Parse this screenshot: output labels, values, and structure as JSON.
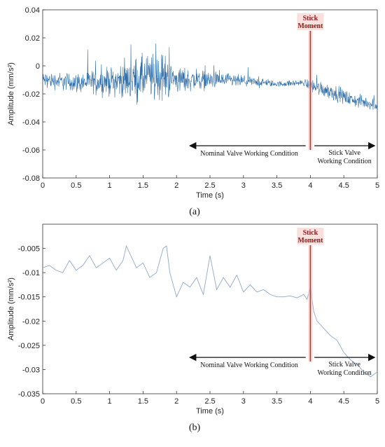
{
  "chart_data": [
    {
      "type": "line",
      "panel_label": "(a)",
      "xlabel": "Time (s)",
      "ylabel": "Amplitude (mm/s²)",
      "xlim": [
        0,
        5
      ],
      "ylim": [
        -0.08,
        0.04
      ],
      "xticks": [
        "0",
        "0.5",
        "1",
        "1.5",
        "2",
        "2.5",
        "3",
        "3.5",
        "4",
        "4.5",
        "5"
      ],
      "yticks": [
        "0.04",
        "0.02",
        "0",
        "-0.02",
        "-0.04",
        "-0.06",
        "-0.08"
      ],
      "line_color": "#2f6ea8",
      "grid": false,
      "signal_envelope": {
        "x": [
          0,
          0.5,
          1.0,
          1.3,
          1.6,
          1.8,
          2.0,
          2.5,
          3.0,
          3.3,
          3.5,
          3.9,
          4.0,
          4.3,
          4.6,
          5.0
        ],
        "center": [
          -0.01,
          -0.012,
          -0.011,
          -0.01,
          -0.008,
          -0.008,
          -0.01,
          -0.01,
          -0.011,
          -0.012,
          -0.013,
          -0.012,
          -0.014,
          -0.018,
          -0.024,
          -0.028
        ],
        "amplitude": [
          0.008,
          0.01,
          0.014,
          0.02,
          0.025,
          0.024,
          0.014,
          0.009,
          0.006,
          0.004,
          0.003,
          0.003,
          0.008,
          0.008,
          0.007,
          0.006
        ]
      },
      "stick_moment": {
        "x": 4.0,
        "label_line1": "Stick",
        "label_line2": "Moment",
        "color": "#c0392b"
      },
      "annotations": {
        "nominal": "Nominal Valve Working Condition",
        "stick_line1": "Stick Valve",
        "stick_line2": "Working Condition",
        "arrow_y": -0.057
      }
    },
    {
      "type": "line",
      "panel_label": "(b)",
      "xlabel": "Time (s)",
      "ylabel": "Amplitude (mm/s²)",
      "xlim": [
        0,
        5
      ],
      "ylim": [
        -0.035,
        0
      ],
      "xticks": [
        "0",
        "0.5",
        "1",
        "1.5",
        "2",
        "2.5",
        "3",
        "3.5",
        "4",
        "4.5",
        "5"
      ],
      "yticks": [
        "-0.005",
        "-0.01",
        "-0.015",
        "-0.02",
        "-0.025",
        "-0.03",
        "-0.035"
      ],
      "line_color": "#8fa8c8",
      "grid": false,
      "x": [
        0,
        0.1,
        0.2,
        0.3,
        0.4,
        0.5,
        0.6,
        0.7,
        0.8,
        0.9,
        1.0,
        1.1,
        1.2,
        1.25,
        1.3,
        1.4,
        1.5,
        1.6,
        1.7,
        1.8,
        1.85,
        1.9,
        2.0,
        2.1,
        2.2,
        2.3,
        2.4,
        2.5,
        2.6,
        2.7,
        2.8,
        2.9,
        3.0,
        3.1,
        3.2,
        3.3,
        3.4,
        3.5,
        3.6,
        3.7,
        3.8,
        3.9,
        3.95,
        4.0,
        4.05,
        4.1,
        4.2,
        4.3,
        4.4,
        4.5,
        4.6,
        4.7,
        4.8,
        4.9,
        5.0
      ],
      "y": [
        -0.009,
        -0.0085,
        -0.0095,
        -0.01,
        -0.0075,
        -0.0095,
        -0.0085,
        -0.0065,
        -0.009,
        -0.008,
        -0.007,
        -0.0095,
        -0.0075,
        -0.0045,
        -0.006,
        -0.009,
        -0.008,
        -0.011,
        -0.01,
        -0.005,
        -0.0045,
        -0.01,
        -0.015,
        -0.012,
        -0.013,
        -0.011,
        -0.0145,
        -0.0065,
        -0.0135,
        -0.011,
        -0.013,
        -0.0105,
        -0.014,
        -0.0125,
        -0.014,
        -0.0135,
        -0.0145,
        -0.015,
        -0.015,
        -0.0148,
        -0.0152,
        -0.0145,
        -0.0155,
        -0.013,
        -0.018,
        -0.02,
        -0.0215,
        -0.023,
        -0.024,
        -0.0265,
        -0.028,
        -0.029,
        -0.0305,
        -0.0315,
        -0.0305
      ],
      "stick_moment": {
        "x": 4.0,
        "label_line1": "Stick",
        "label_line2": "Moment",
        "color": "#c0392b"
      },
      "annotations": {
        "nominal": "Nominal Valve Working Condition",
        "stick_line1": "Stick Valve",
        "stick_line2": "Working Condition",
        "arrow_y": -0.0275
      }
    }
  ]
}
